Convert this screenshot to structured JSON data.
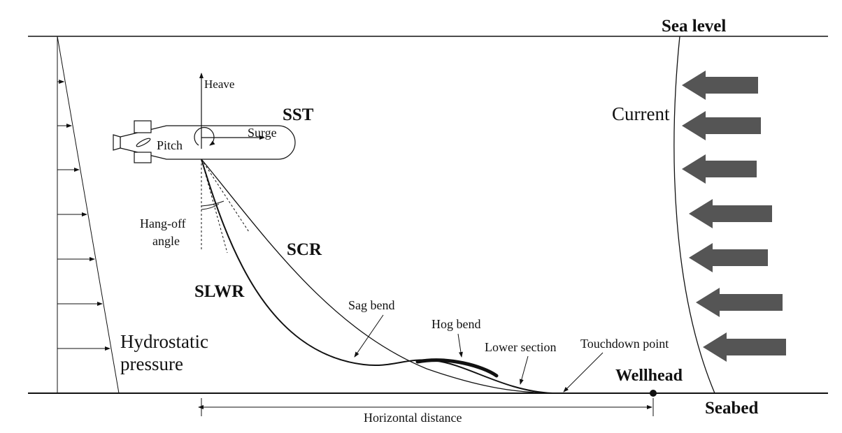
{
  "labels": {
    "sea_level": "Sea level",
    "seabed": "Seabed",
    "sst": "SST",
    "heave": "Heave",
    "surge": "Surge",
    "pitch": "Pitch",
    "current": "Current",
    "hang_off_line1": "Hang-off",
    "hang_off_line2": "angle",
    "scr": "SCR",
    "slwr": "SLWR",
    "sag_bend": "Sag bend",
    "hog_bend": "Hog bend",
    "lower_section": "Lower section",
    "touchdown_point": "Touchdown point",
    "wellhead": "Wellhead",
    "hydrostatic_line1": "Hydrostatic",
    "hydrostatic_line2": "pressure",
    "horizontal_distance": "Horizontal distance"
  },
  "colors": {
    "line": "#111111",
    "current_arrow": "#555555"
  },
  "current_profile": {
    "arrow_count": 7,
    "relative_strength": [
      0.88,
      0.91,
      0.86,
      0.96,
      0.91,
      1.0,
      0.96
    ]
  },
  "hydrostatic_profile": {
    "arrow_count": 7,
    "relative_pressure": [
      0.14,
      0.28,
      0.42,
      0.56,
      0.7,
      0.84,
      1.0
    ]
  }
}
